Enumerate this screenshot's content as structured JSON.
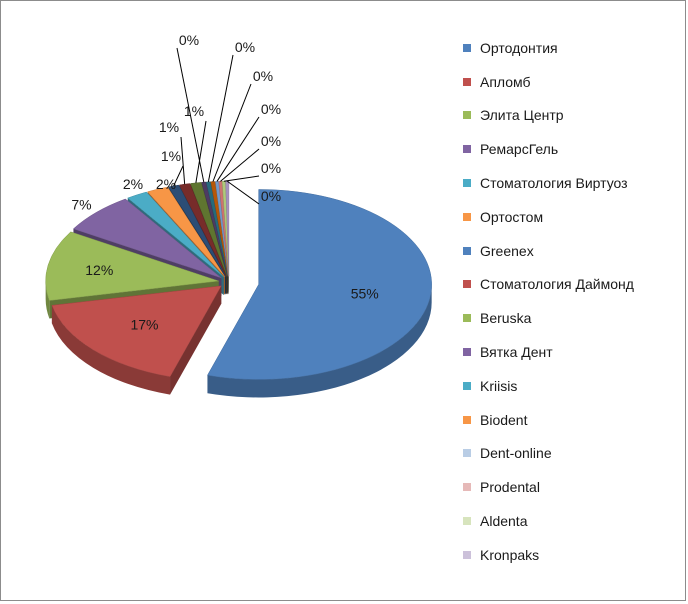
{
  "chart_data": {
    "type": "pie",
    "style": "3d-exploded",
    "legend_position": "right",
    "slices": [
      {
        "name": "Ортодонтия",
        "value": 55,
        "label": "55%",
        "color": "#4f81bd"
      },
      {
        "name": "Апломб",
        "value": 17,
        "label": "17%",
        "color": "#c0504d"
      },
      {
        "name": "Элита Центр",
        "value": 12,
        "label": "12%",
        "color": "#9bbb59"
      },
      {
        "name": "РемарсГель",
        "value": 7,
        "label": "7%",
        "color": "#8064a2"
      },
      {
        "name": "Стоматология Виртуоз",
        "value": 2,
        "label": "2%",
        "color": "#4bacc6"
      },
      {
        "name": "Ортостом",
        "value": 2,
        "label": "2%",
        "color": "#f79646"
      },
      {
        "name": "Greenex",
        "value": 1,
        "label": "1%",
        "color": "#2c4d75"
      },
      {
        "name": "Стоматология Даймонд",
        "value": 1,
        "label": "1%",
        "color": "#772c2a"
      },
      {
        "name": "Beruska",
        "value": 1,
        "label": "1%",
        "color": "#5f7530"
      },
      {
        "name": "Вятка Дент",
        "value": 0.4,
        "label": "0%",
        "color": "#4d3b62"
      },
      {
        "name": "Kriisis",
        "value": 0.4,
        "label": "0%",
        "color": "#276a7c"
      },
      {
        "name": "Biodent",
        "value": 0.4,
        "label": "0%",
        "color": "#b65708"
      },
      {
        "name": "Dent-online",
        "value": 0.3,
        "label": "0%",
        "color": "#729aca"
      },
      {
        "name": "Prodental",
        "value": 0.3,
        "label": "0%",
        "color": "#cd7371"
      },
      {
        "name": "Aldenta",
        "value": 0.3,
        "label": "0%",
        "color": "#afc97a"
      },
      {
        "name": "Kronpaks",
        "value": 0.3,
        "label": "0%",
        "color": "#a692be"
      }
    ],
    "legend": [
      {
        "name": "Ортодонтия",
        "color": "#4f81bd"
      },
      {
        "name": "Апломб",
        "color": "#c0504d"
      },
      {
        "name": "Элита Центр",
        "color": "#9bbb59"
      },
      {
        "name": "РемарсГель",
        "color": "#8064a2"
      },
      {
        "name": "Стоматология Виртуоз",
        "color": "#4bacc6"
      },
      {
        "name": "Ортостом",
        "color": "#f79646"
      },
      {
        "name": "Greenex",
        "color": "#4f81bd"
      },
      {
        "name": "Стоматология Даймонд",
        "color": "#c0504d"
      },
      {
        "name": "Beruska",
        "color": "#9bbb59"
      },
      {
        "name": "Вятка Дент",
        "color": "#8064a2"
      },
      {
        "name": "Kriisis",
        "color": "#4bacc6"
      },
      {
        "name": "Biodent",
        "color": "#f79646"
      },
      {
        "name": "Dent-online",
        "color": "#b9cde5"
      },
      {
        "name": "Prodental",
        "color": "#e6b9b8"
      },
      {
        "name": "Aldenta",
        "color": "#d7e4bd"
      },
      {
        "name": "Kronpaks",
        "color": "#ccc1da"
      }
    ]
  }
}
